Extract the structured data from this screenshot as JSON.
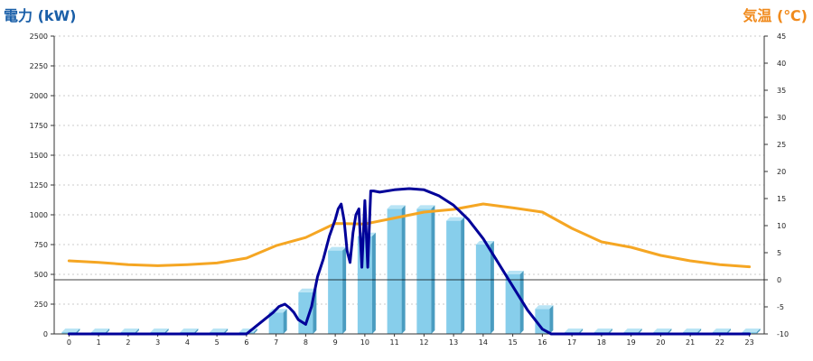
{
  "chart_data": {
    "type": "bar",
    "title": "",
    "xlabel": "",
    "ylabel_left": "電力 (kW)",
    "ylabel_right": "気温 (℃)",
    "categories": [
      "0",
      "1",
      "2",
      "3",
      "4",
      "5",
      "6",
      "7",
      "8",
      "9",
      "10",
      "11",
      "12",
      "13",
      "14",
      "15",
      "16",
      "17",
      "18",
      "19",
      "20",
      "21",
      "22",
      "23"
    ],
    "ylim_left": [
      0,
      2500
    ],
    "yticks_left": [
      0,
      250,
      500,
      750,
      1000,
      1250,
      1500,
      1750,
      2000,
      2250,
      2500
    ],
    "ylim_right": [
      -10,
      45
    ],
    "yticks_right": [
      -10,
      -5,
      0,
      5,
      10,
      15,
      20,
      25,
      30,
      35,
      40,
      45
    ],
    "grid": true,
    "colors": {
      "bar_face": "#87CEEB",
      "bar_top": "#B8E4F5",
      "bar_side": "#4A9CC0",
      "power_line": "#000099",
      "temp_line": "#F5A623",
      "left_title": "#1A5FA8",
      "right_title": "#F08A1C",
      "zero_line": "#000000",
      "grid": "#BBBBBB"
    },
    "series": [
      {
        "type": "bar",
        "axis": "left",
        "values": [
          10,
          10,
          10,
          10,
          10,
          10,
          15,
          180,
          350,
          700,
          820,
          1050,
          1050,
          950,
          750,
          500,
          210,
          15,
          10,
          10,
          10,
          10,
          10,
          10
        ]
      },
      {
        "type": "line",
        "axis": "right",
        "x": [
          0,
          1,
          2,
          3,
          4,
          5,
          6,
          7,
          8,
          9,
          10,
          11,
          12,
          13,
          14,
          15,
          16,
          17,
          18,
          19,
          20,
          21,
          22,
          23
        ],
        "values": [
          3.5,
          3.2,
          2.8,
          2.6,
          2.8,
          3.1,
          4.0,
          6.3,
          7.8,
          10.4,
          10.3,
          11.4,
          12.5,
          13.0,
          14.0,
          13.3,
          12.5,
          9.5,
          7.0,
          6.0,
          4.5,
          3.5,
          2.8,
          2.4
        ]
      },
      {
        "type": "line",
        "axis": "left",
        "x": [
          0,
          1,
          2,
          3,
          4,
          5,
          6,
          6.3,
          6.6,
          6.9,
          7.1,
          7.3,
          7.45,
          7.6,
          7.75,
          8.0,
          8.2,
          8.4,
          8.6,
          8.8,
          9.0,
          9.1,
          9.2,
          9.3,
          9.4,
          9.5,
          9.6,
          9.7,
          9.8,
          9.9,
          10.0,
          10.1,
          10.2,
          10.3,
          10.5,
          11.0,
          11.5,
          12.0,
          12.5,
          13.0,
          13.5,
          14.0,
          14.5,
          15.0,
          15.5,
          16.0,
          16.3,
          16.6,
          17,
          18,
          19,
          20,
          21,
          22,
          23
        ],
        "values": [
          0,
          0,
          0,
          0,
          0,
          0,
          0,
          60,
          120,
          180,
          230,
          250,
          220,
          180,
          120,
          80,
          230,
          480,
          630,
          820,
          960,
          1050,
          1090,
          950,
          700,
          600,
          850,
          1000,
          1050,
          560,
          1120,
          560,
          1200,
          1200,
          1190,
          1210,
          1220,
          1210,
          1160,
          1080,
          960,
          800,
          600,
          400,
          200,
          40,
          0,
          0,
          0,
          0,
          0,
          0,
          0,
          0,
          0
        ]
      }
    ]
  }
}
